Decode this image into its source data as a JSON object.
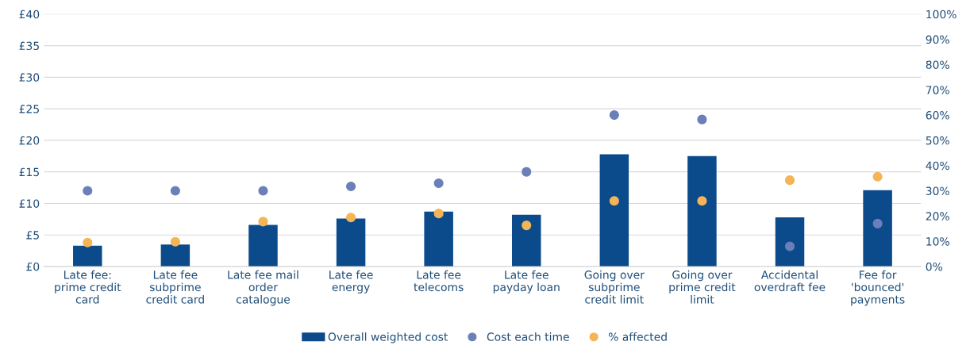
{
  "chart_data": {
    "type": "bar",
    "categories": [
      "Late fee: prime credit card",
      "Late fee subprime credit card",
      "Late fee mail order catalogue",
      "Late fee energy",
      "Late fee telecoms",
      "Late fee payday loan",
      "Going over subprime credit limit",
      "Going over prime credit limit",
      "Accidental overdraft fee",
      "Fee for 'bounced' payments"
    ],
    "series": [
      {
        "name": "Overall weighted cost",
        "color": "#0b4a8b",
        "values": [
          3.3,
          3.5,
          6.6,
          7.6,
          8.7,
          8.2,
          17.8,
          17.5,
          7.8,
          12.1
        ]
      },
      {
        "name": "Cost each time",
        "type": "scatter",
        "color": "#6b80b8",
        "values": [
          12.0,
          12.0,
          12.0,
          12.7,
          13.2,
          15.0,
          24.0,
          23.3,
          3.2,
          6.8
        ]
      },
      {
        "name": "% affected",
        "type": "scatter",
        "axis": "y2",
        "color": "#f5b455",
        "values": [
          9.5,
          9.8,
          17.8,
          19.4,
          21.0,
          16.3,
          26,
          26,
          34.2,
          35.6
        ]
      }
    ],
    "ylim": [
      0,
      40
    ],
    "yticks": [
      {
        "value": 0,
        "label": "£0"
      },
      {
        "value": 5,
        "label": "£5"
      },
      {
        "value": 10,
        "label": "£10"
      },
      {
        "value": 15,
        "label": "£15"
      },
      {
        "value": 20,
        "label": "£20"
      },
      {
        "value": 25,
        "label": "£25"
      },
      {
        "value": 30,
        "label": "£30"
      },
      {
        "value": 35,
        "label": "£35"
      },
      {
        "value": 40,
        "label": "£40"
      }
    ],
    "y2lim": [
      0,
      100
    ],
    "y2ticks": [
      {
        "value": 0,
        "label": "0%"
      },
      {
        "value": 10,
        "label": "10%"
      },
      {
        "value": 20,
        "label": "20%"
      },
      {
        "value": 30,
        "label": "30%"
      },
      {
        "value": 40,
        "label": "40%"
      },
      {
        "value": 50,
        "label": "50%"
      },
      {
        "value": 60,
        "label": "60%"
      },
      {
        "value": 70,
        "label": "70%"
      },
      {
        "value": 80,
        "label": "80%"
      },
      {
        "value": 90,
        "label": "90%"
      },
      {
        "value": 100,
        "label": "100%"
      }
    ],
    "grid": "y",
    "legend": "bottom",
    "marker": "circle"
  }
}
